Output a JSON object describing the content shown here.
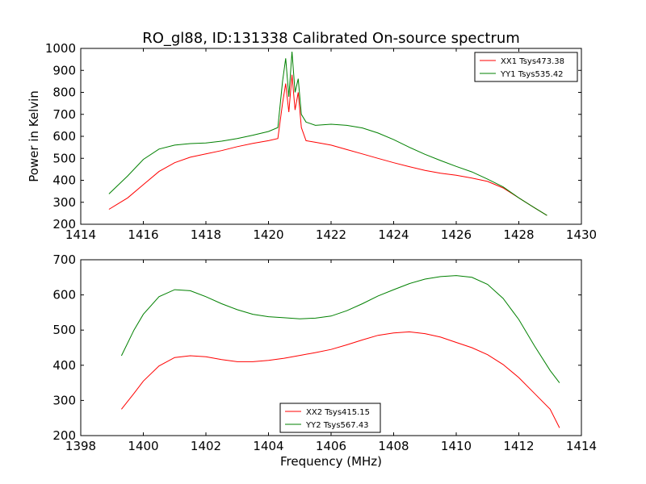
{
  "figure": {
    "title": "RO_gl88, ID:131338 Calibrated On-source spectrum"
  },
  "chart_data": [
    {
      "type": "line",
      "title": "RO_gl88, ID:131338 Calibrated On-source spectrum",
      "xlabel": "",
      "ylabel": "Power in Kelvin",
      "xlim": [
        1414,
        1430
      ],
      "ylim": [
        200,
        1000
      ],
      "xticks": [
        1414,
        1416,
        1418,
        1420,
        1422,
        1424,
        1426,
        1428,
        1430
      ],
      "yticks": [
        200,
        300,
        400,
        500,
        600,
        700,
        800,
        900,
        1000
      ],
      "grid": false,
      "legend": "top-right",
      "series": [
        {
          "name": "XX1 Tsys473.38",
          "color": "#ff0000",
          "x": [
            1414.9,
            1415.5,
            1416.0,
            1416.5,
            1417.0,
            1417.5,
            1418.0,
            1418.5,
            1419.0,
            1419.5,
            1420.0,
            1420.3,
            1420.45,
            1420.55,
            1420.65,
            1420.75,
            1420.85,
            1420.95,
            1421.05,
            1421.2,
            1421.5,
            1422.0,
            1422.5,
            1423.0,
            1423.5,
            1424.0,
            1424.5,
            1425.0,
            1425.5,
            1426.0,
            1426.5,
            1427.0,
            1427.5,
            1428.0,
            1428.5,
            1428.9
          ],
          "values": [
            268,
            320,
            380,
            440,
            480,
            505,
            520,
            535,
            553,
            568,
            580,
            590,
            750,
            840,
            710,
            880,
            720,
            800,
            640,
            580,
            573,
            560,
            540,
            520,
            500,
            480,
            462,
            445,
            432,
            423,
            410,
            395,
            365,
            320,
            275,
            240
          ]
        },
        {
          "name": "YY1 Tsys535.42",
          "color": "#008000",
          "x": [
            1414.9,
            1415.5,
            1416.0,
            1416.5,
            1417.0,
            1417.5,
            1418.0,
            1418.5,
            1419.0,
            1419.5,
            1420.0,
            1420.3,
            1420.45,
            1420.55,
            1420.65,
            1420.75,
            1420.85,
            1420.95,
            1421.05,
            1421.2,
            1421.5,
            1422.0,
            1422.5,
            1423.0,
            1423.5,
            1424.0,
            1424.5,
            1425.0,
            1425.5,
            1426.0,
            1426.5,
            1427.0,
            1427.5,
            1428.0,
            1428.5,
            1428.9
          ],
          "values": [
            338,
            420,
            495,
            542,
            560,
            567,
            570,
            578,
            590,
            605,
            622,
            640,
            850,
            955,
            780,
            985,
            800,
            862,
            700,
            665,
            650,
            655,
            650,
            638,
            615,
            585,
            550,
            518,
            490,
            463,
            438,
            405,
            370,
            320,
            275,
            240
          ]
        }
      ]
    },
    {
      "type": "line",
      "title": "",
      "xlabel": "Frequency (MHz)",
      "ylabel": "",
      "xlim": [
        1398,
        1414
      ],
      "ylim": [
        200,
        700
      ],
      "xticks": [
        1398,
        1400,
        1402,
        1404,
        1406,
        1408,
        1410,
        1412,
        1414
      ],
      "yticks": [
        200,
        300,
        400,
        500,
        600,
        700
      ],
      "grid": false,
      "legend": "bottom-center",
      "series": [
        {
          "name": "XX2 Tsys415.15",
          "color": "#ff0000",
          "x": [
            1399.3,
            1399.7,
            1400.0,
            1400.5,
            1401.0,
            1401.5,
            1402.0,
            1402.5,
            1403.0,
            1403.5,
            1404.0,
            1404.5,
            1405.0,
            1405.5,
            1406.0,
            1406.5,
            1407.0,
            1407.5,
            1408.0,
            1408.5,
            1409.0,
            1409.5,
            1410.0,
            1410.5,
            1411.0,
            1411.5,
            1412.0,
            1412.5,
            1413.0,
            1413.3
          ],
          "values": [
            275,
            320,
            355,
            398,
            422,
            427,
            424,
            416,
            410,
            410,
            414,
            420,
            428,
            436,
            445,
            458,
            472,
            485,
            492,
            495,
            490,
            480,
            465,
            450,
            430,
            402,
            365,
            320,
            275,
            222
          ]
        },
        {
          "name": "YY2 Tsys567.43",
          "color": "#008000",
          "x": [
            1399.3,
            1399.7,
            1400.0,
            1400.5,
            1401.0,
            1401.5,
            1402.0,
            1402.5,
            1403.0,
            1403.5,
            1404.0,
            1404.5,
            1405.0,
            1405.5,
            1406.0,
            1406.5,
            1407.0,
            1407.5,
            1408.0,
            1408.5,
            1409.0,
            1409.5,
            1410.0,
            1410.5,
            1411.0,
            1411.5,
            1412.0,
            1412.5,
            1413.0,
            1413.3
          ],
          "values": [
            427,
            500,
            545,
            595,
            615,
            612,
            595,
            575,
            558,
            545,
            538,
            535,
            532,
            534,
            540,
            555,
            575,
            597,
            615,
            632,
            645,
            652,
            655,
            650,
            630,
            590,
            530,
            455,
            385,
            350
          ]
        }
      ]
    }
  ]
}
